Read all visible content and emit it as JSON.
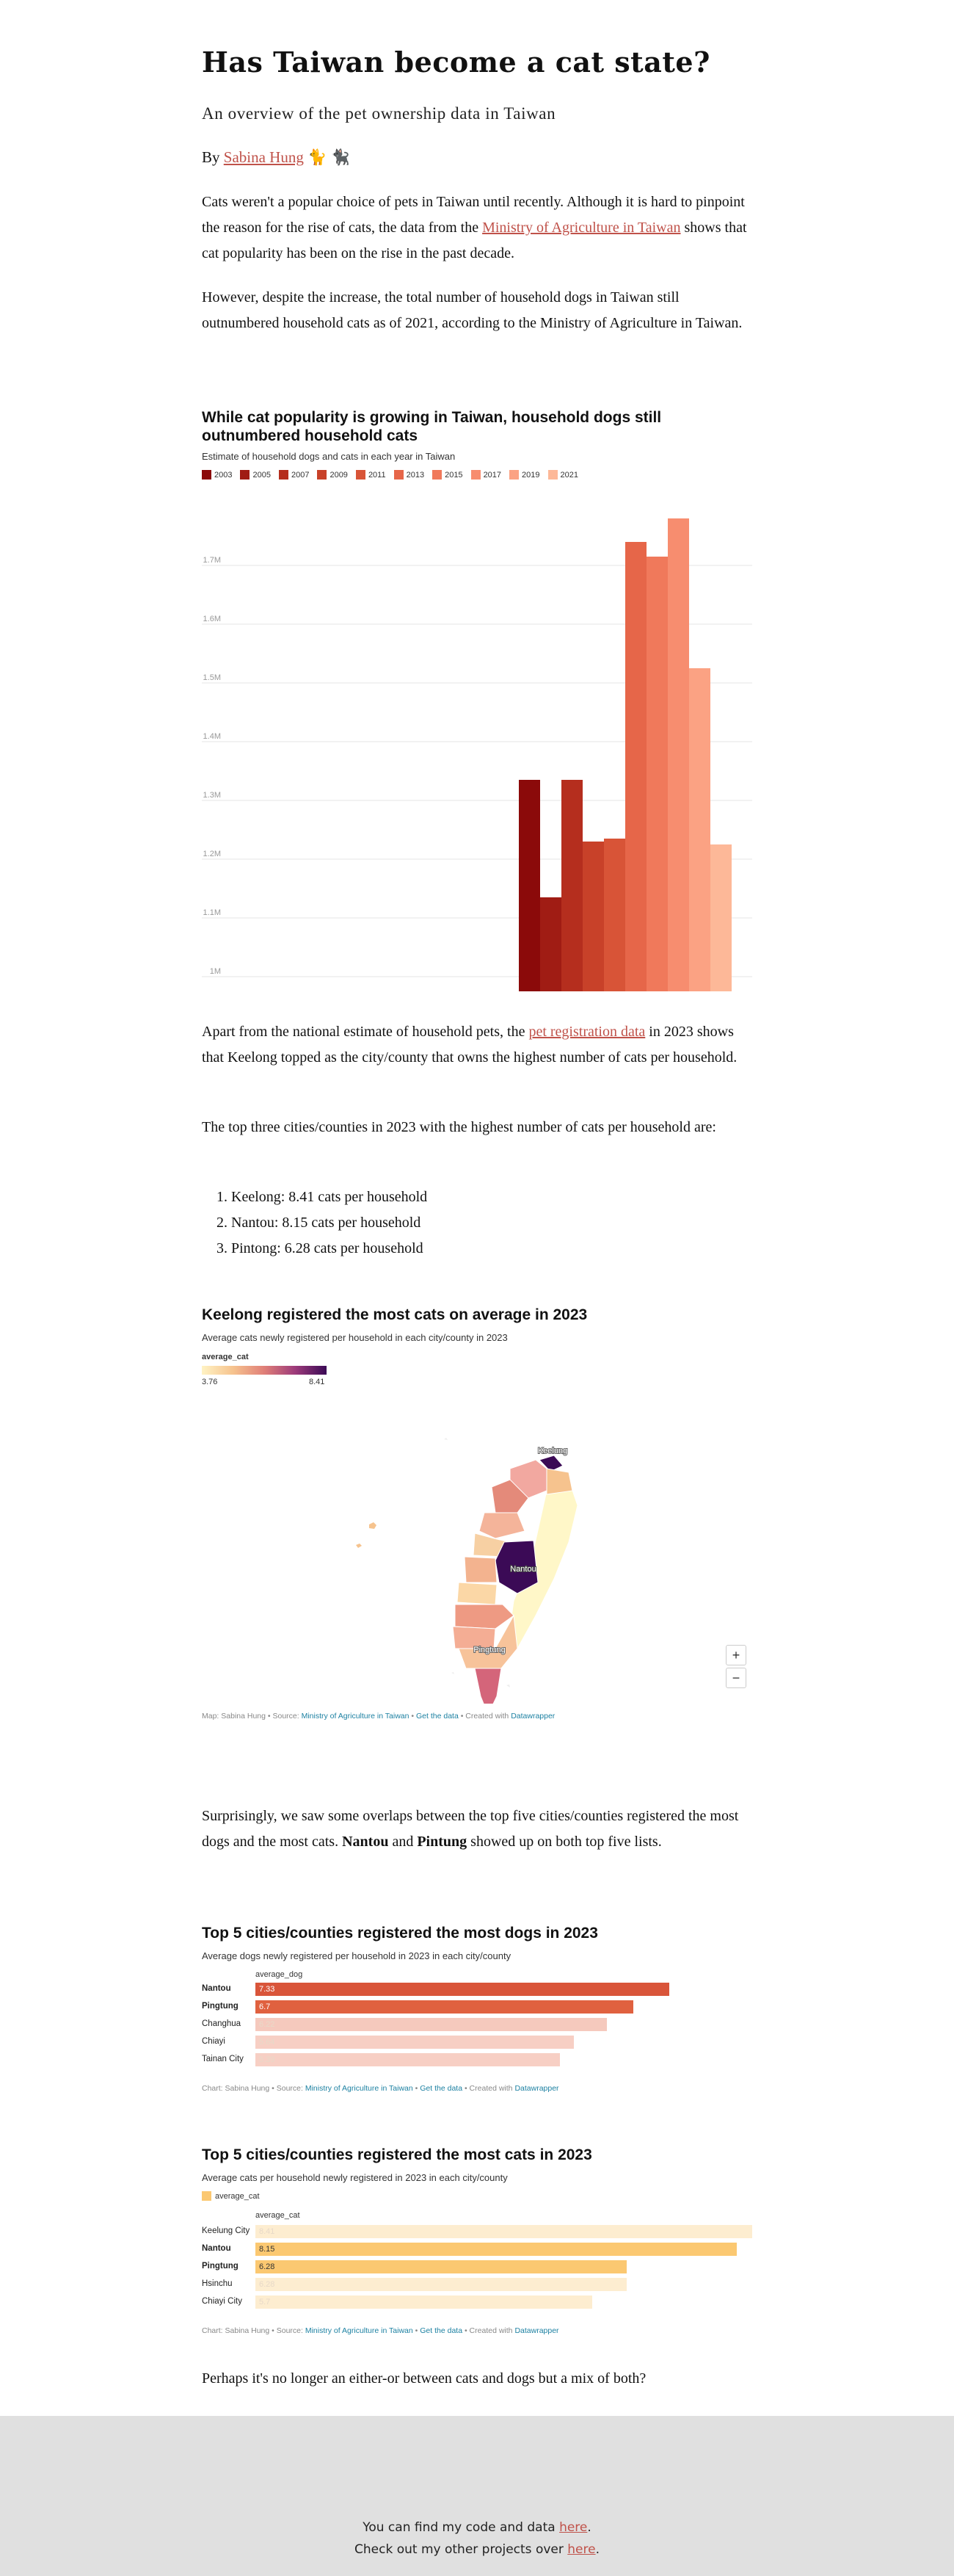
{
  "article": {
    "title": "Has Taiwan become a cat state?",
    "subtitle": "An overview of the pet ownership data in Taiwan",
    "byline_prefix": "By",
    "author": "Sabina Hung",
    "byline_emoji": "🐈 🐈‍⬛",
    "p1_part1": "Cats weren't a popular choice of pets in Taiwan until recently. Although it is hard to pinpoint the reason for the rise of cats, the data from the",
    "p1_link": "Ministry of Agriculture in Taiwan",
    "p1_part2": "shows that cat popularity has been on the rise in the past decade.",
    "p2": "However, despite the increase, the total number of household dogs in Taiwan still outnumbered household cats as of 2021, according to the Ministry of Agriculture in Taiwan.",
    "p3_part1": "Apart from the national estimate of household pets, the",
    "p3_link": "pet registration data",
    "p3_part2": "in 2023 shows that Keelong topped as the city/county that owns the highest number of cats per household.",
    "p4": "The top three cities/counties in 2023 with the highest number of cats per household are:",
    "list": [
      "Keelong: 8.41 cats per household",
      "Nantou: 8.15 cats per household",
      "Pintong: 6.28 cats per household"
    ],
    "p5_part1": "Surprisingly, we saw some overlaps between the top five cities/counties registered the most dogs and the most cats.",
    "p5_bold1": "Nantou",
    "p5_and": "and",
    "p5_bold2": "Pintung",
    "p5_part2": "showed up on both top five lists.",
    "p6": "Perhaps it's no longer an either-or between cats and dogs but a mix of both?"
  },
  "chart1": {
    "title": "While cat popularity is growing in Taiwan, household dogs still outnumbered household cats",
    "description": "Estimate of household dogs and cats in each year in Taiwan",
    "chart_data": {
      "type": "bar",
      "categories": [
        "2003",
        "2005",
        "2007",
        "2009",
        "2011",
        "2013",
        "2015",
        "2017",
        "2019",
        "2021"
      ],
      "values": [
        1.335,
        1.135,
        1.335,
        1.23,
        1.235,
        1.74,
        1.715,
        1.78,
        1.525,
        1.225
      ],
      "colors": [
        "#8b0a0a",
        "#a01c14",
        "#b52e1e",
        "#c84129",
        "#d85437",
        "#e66649",
        "#f0795b",
        "#f78d6f",
        "#fba283",
        "#fdb898"
      ],
      "ylim": [
        0.975,
        1.8
      ],
      "yticks": [
        1.0,
        1.1,
        1.2,
        1.3,
        1.4,
        1.5,
        1.6,
        1.7
      ],
      "ytick_labels": [
        "1M",
        "1.1M",
        "1.2M",
        "1.3M",
        "1.4M",
        "1.5M",
        "1.6M",
        "1.7M"
      ],
      "grid": true,
      "legend": "top-left"
    }
  },
  "chart2": {
    "title": "Keelong registered the most cats on average in 2023",
    "description": "Average cats newly registered per household in each city/county in 2023",
    "legend_title": "average_cat",
    "legend_min": "3.76",
    "legend_max": "8.41",
    "labels": [
      "Keelung",
      "Nantou",
      "Pingtung"
    ],
    "zoom_in": "+",
    "zoom_out": "−",
    "footer_prefix": "Map: Sabina Hung • Source:",
    "footer_source": "Ministry of Agriculture in Taiwan",
    "footer_sep1": "•",
    "footer_data": "Get the data",
    "footer_sep2": "• Created with",
    "footer_tool": "Datawrapper"
  },
  "chart3": {
    "title": "Top 5 cities/counties registered the most dogs in 2023",
    "description": "Average dogs newly registered per household in 2023 in each city/county",
    "column_label": "average_dog",
    "chart_data": {
      "type": "bar",
      "orientation": "horizontal",
      "categories": [
        "Nantou",
        "Pingtung",
        "Changhua",
        "Chiayi",
        "Tainan City"
      ],
      "values": [
        7.33,
        6.7,
        6.22,
        5.64,
        5.39
      ],
      "value_labels": [
        "7.33",
        "6.7",
        "6.22",
        "5.64",
        "5.39"
      ],
      "highlighted": [
        true,
        true,
        false,
        false,
        false
      ],
      "colors": [
        "#d9553a",
        "#e0613f",
        "#f5c9bd",
        "#f7cfc4",
        "#f7cfc4"
      ],
      "xlim": [
        0,
        8.8
      ]
    },
    "footer_prefix": "Chart: Sabina Hung • Source:",
    "footer_source": "Ministry of Agriculture in Taiwan",
    "footer_sep1": "•",
    "footer_data": "Get the data",
    "footer_sep2": "• Created with",
    "footer_tool": "Datawrapper"
  },
  "chart4": {
    "title": "Top 5 cities/counties registered the most cats in 2023",
    "description": "Average cats per household newly registered in 2023 in each city/county",
    "legend_label": "average_cat",
    "column_label": "average_cat",
    "chart_data": {
      "type": "bar",
      "orientation": "horizontal",
      "categories": [
        "Keelung City",
        "Nantou",
        "Pingtung",
        "Hsinchu",
        "Chiayi City"
      ],
      "values": [
        8.41,
        8.15,
        6.28,
        6.28,
        5.7
      ],
      "value_labels": [
        "8.41",
        "8.15",
        "6.28",
        "6.28",
        "5.7"
      ],
      "highlighted": [
        false,
        true,
        true,
        false,
        false
      ],
      "colors": [
        "#fdedd0",
        "#fbc871",
        "#fbc871",
        "#fdedd0",
        "#fdedd0"
      ],
      "xlim": [
        0,
        8.41
      ]
    },
    "footer_prefix": "Chart: Sabina Hung • Source:",
    "footer_source": "Ministry of Agriculture in Taiwan",
    "footer_sep1": "•",
    "footer_data": "Get the data",
    "footer_sep2": "• Created with",
    "footer_tool": "Datawrapper"
  },
  "footer": {
    "line1_text": "You can find my code and data",
    "line1_link": "here",
    "line1_end": ".",
    "line2_text": "Check out my other projects over",
    "line2_link": "here",
    "line2_end": "."
  }
}
